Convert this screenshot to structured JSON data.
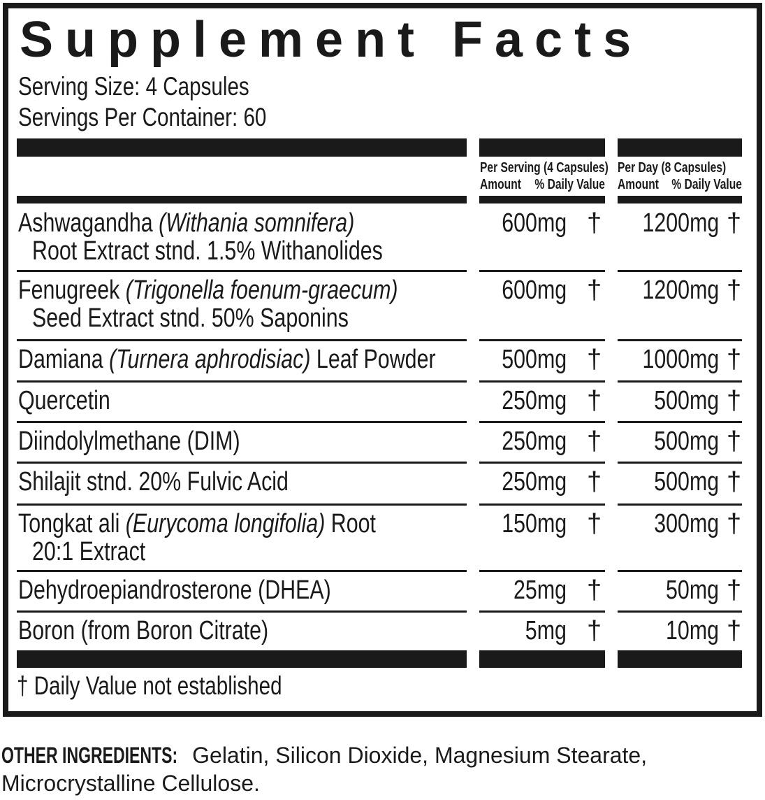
{
  "title": "Supplement Facts",
  "serving_size": "Serving Size: 4 Capsules",
  "servings_per_container": "Servings Per Container: 60",
  "columns": {
    "per_serving": "Per Serving (4 Capsules)",
    "per_day": "Per Day (8 Capsules)",
    "amount": "Amount",
    "daily_value": "% Daily Value"
  },
  "rows": [
    {
      "name": "Ashwagandha ",
      "latin": "(Withania somnifera)",
      "rest": "",
      "line2": "Root Extract stnd. 1.5% Withanolides",
      "serving": "600mg",
      "day": "1200mg",
      "dv": "†"
    },
    {
      "name": "Fenugreek ",
      "latin": "(Trigonella foenum-graecum)",
      "rest": "",
      "line2": "Seed Extract stnd. 50% Saponins",
      "serving": "600mg",
      "day": "1200mg",
      "dv": "†"
    },
    {
      "name": "Damiana ",
      "latin": "(Turnera aphrodisiac)",
      "rest": " Leaf Powder",
      "line2": "",
      "serving": "500mg",
      "day": "1000mg",
      "dv": "†"
    },
    {
      "name": "Quercetin",
      "latin": "",
      "rest": "",
      "line2": "",
      "serving": "250mg",
      "day": "500mg",
      "dv": "†"
    },
    {
      "name": "Diindolylmethane (DIM)",
      "latin": "",
      "rest": "",
      "line2": "",
      "serving": "250mg",
      "day": "500mg",
      "dv": "†"
    },
    {
      "name": "Shilajit stnd. 20% Fulvic Acid",
      "latin": "",
      "rest": "",
      "line2": "",
      "serving": "250mg",
      "day": "500mg",
      "dv": "†"
    },
    {
      "name": "Tongkat ali ",
      "latin": "(Eurycoma longifolia)",
      "rest": " Root",
      "line2": "20:1 Extract",
      "serving": "150mg",
      "day": "300mg",
      "dv": "†"
    },
    {
      "name": "Dehydroepiandrosterone (DHEA)",
      "latin": "",
      "rest": "",
      "line2": "",
      "serving": "25mg",
      "day": "50mg",
      "dv": "†"
    },
    {
      "name": "Boron (from Boron Citrate)",
      "latin": "",
      "rest": "",
      "line2": "",
      "serving": "5mg",
      "day": "10mg",
      "dv": "†"
    }
  ],
  "footnote": "† Daily Value not established",
  "other_ingredients": {
    "label": "OTHER INGREDIENTS:",
    "line1": " Gelatin, Silicon Dioxide, Magnesium Stearate,",
    "line2": "Microcrystalline Cellulose."
  }
}
